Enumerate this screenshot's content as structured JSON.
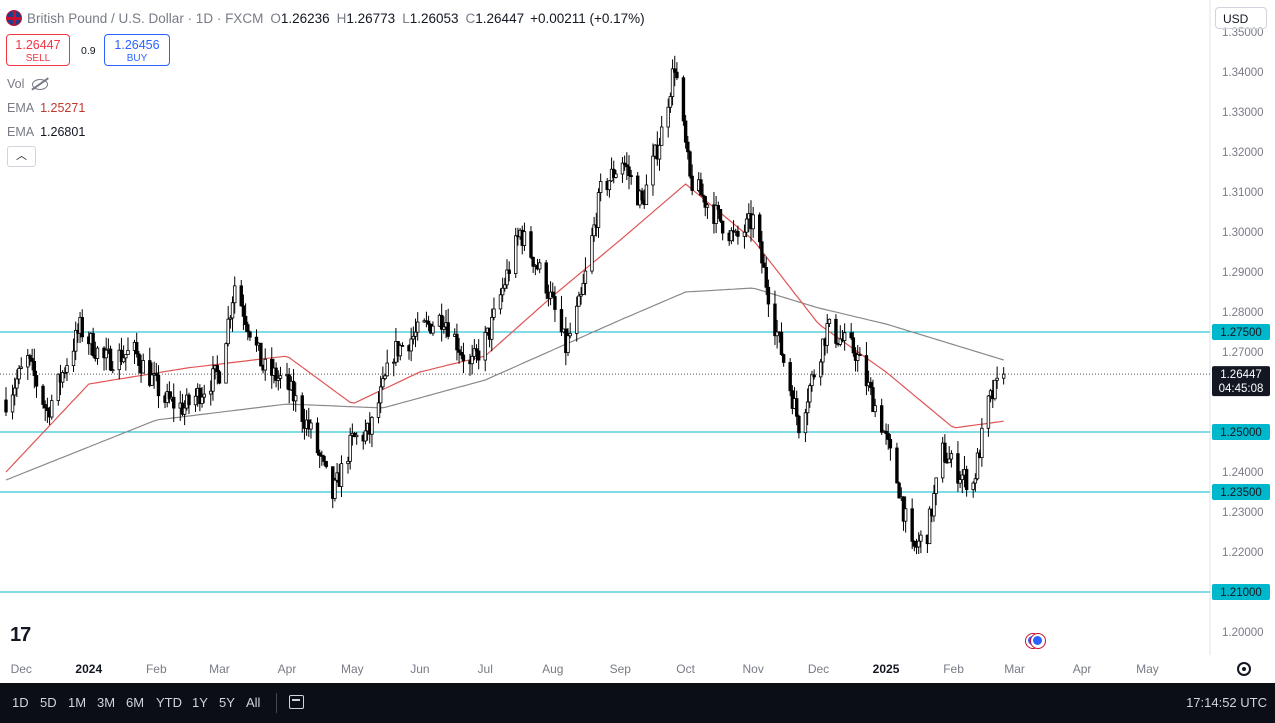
{
  "legend": {
    "symbol": "British Pound / U.S. Dollar · 1D · FXCM",
    "open_label": "O",
    "open": "1.26236",
    "high_label": "H",
    "high": "1.26773",
    "low_label": "L",
    "low": "1.26053",
    "close_label": "C",
    "close": "1.26447",
    "change": "+0.00211 (+0.17%)"
  },
  "trade": {
    "sell_price": "1.26447",
    "sell_label": "SELL",
    "spread": "0.9",
    "buy_price": "1.26456",
    "buy_label": "BUY"
  },
  "indicators": {
    "vol_label": "Vol",
    "ema1_label": "EMA",
    "ema1_value": "1.25271",
    "ema2_label": "EMA",
    "ema2_value": "1.26801"
  },
  "currency": "USD",
  "timeframes": [
    "1D",
    "5D",
    "1M",
    "3M",
    "6M",
    "YTD",
    "1Y",
    "5Y",
    "All"
  ],
  "clock": "17:14:52 UTC",
  "colors": {
    "candle": "#000000",
    "ema_fast": "#e05555",
    "ema_slow": "#8a8a8a",
    "support_line": "#00b8cc",
    "price_line": "#555555",
    "tag_bg": "#131722"
  },
  "icons": [
    "tradingview-logo",
    "flag-icon",
    "eye-off-icon",
    "chevron-up-icon",
    "calendar-icon",
    "settings-icon",
    "economic-event-icon"
  ],
  "chart_data": {
    "type": "candlestick",
    "ylim": [
      1.195,
      1.3525
    ],
    "y_ticks": [
      1.2,
      1.21,
      1.22,
      1.23,
      1.24,
      1.25,
      1.26,
      1.27,
      1.28,
      1.29,
      1.3,
      1.31,
      1.32,
      1.33,
      1.34,
      1.35
    ],
    "y_tick_labels": [
      "1.20000",
      "1.21000",
      "1.22000",
      "1.23000",
      "1.24000",
      "1.25000",
      "1.26000",
      "1.27000",
      "1.28000",
      "1.29000",
      "1.30000",
      "1.31000",
      "1.32000",
      "1.33000",
      "1.34000",
      "1.35000"
    ],
    "x_labels": [
      "Dec",
      "2024",
      "Feb",
      "Mar",
      "Apr",
      "May",
      "Jun",
      "Jul",
      "Aug",
      "Sep",
      "Oct",
      "Nov",
      "Dec",
      "2025",
      "Feb",
      "Mar",
      "Apr",
      "May"
    ],
    "x_label_bold": [
      false,
      true,
      false,
      false,
      false,
      false,
      false,
      false,
      false,
      false,
      false,
      false,
      false,
      true,
      false,
      false,
      false,
      false
    ],
    "x_start": "2023-11-24",
    "x_end": "2025-05-21",
    "last_bar_date": "2025-02-24",
    "horizontal_levels": [
      {
        "price": 1.275,
        "label": "1.27500"
      },
      {
        "price": 1.25,
        "label": "1.25000"
      },
      {
        "price": 1.235,
        "label": "1.23500"
      },
      {
        "price": 1.21,
        "label": "1.21000"
      }
    ],
    "current_price": {
      "price": 1.26447,
      "label": "1.26447",
      "countdown": "04:45:08"
    },
    "close_path": [
      [
        "2023-11-24",
        1.258
      ],
      [
        "2023-12-04",
        1.268
      ],
      [
        "2023-12-13",
        1.255
      ],
      [
        "2023-12-28",
        1.276
      ],
      [
        "2024-01-08",
        1.268
      ],
      [
        "2024-01-22",
        1.27
      ],
      [
        "2024-02-05",
        1.258
      ],
      [
        "2024-02-14",
        1.256
      ],
      [
        "2024-03-01",
        1.265
      ],
      [
        "2024-03-08",
        1.287
      ],
      [
        "2024-03-21",
        1.266
      ],
      [
        "2024-04-01",
        1.262
      ],
      [
        "2024-04-12",
        1.25
      ],
      [
        "2024-04-22",
        1.234
      ],
      [
        "2024-05-01",
        1.248
      ],
      [
        "2024-05-09",
        1.25
      ],
      [
        "2024-05-20",
        1.27
      ],
      [
        "2024-06-03",
        1.276
      ],
      [
        "2024-06-12",
        1.279
      ],
      [
        "2024-06-24",
        1.266
      ],
      [
        "2024-07-03",
        1.275
      ],
      [
        "2024-07-17",
        1.3
      ],
      [
        "2024-07-29",
        1.287
      ],
      [
        "2024-08-07",
        1.271
      ],
      [
        "2024-08-14",
        1.283
      ],
      [
        "2024-08-23",
        1.31
      ],
      [
        "2024-09-02",
        1.318
      ],
      [
        "2024-09-11",
        1.307
      ],
      [
        "2024-09-20",
        1.325
      ],
      [
        "2024-09-26",
        1.342
      ],
      [
        "2024-10-03",
        1.313
      ],
      [
        "2024-10-14",
        1.305
      ],
      [
        "2024-10-24",
        1.298
      ],
      [
        "2024-11-01",
        1.303
      ],
      [
        "2024-11-11",
        1.277
      ],
      [
        "2024-11-22",
        1.252
      ],
      [
        "2024-12-05",
        1.276
      ],
      [
        "2024-12-18",
        1.27
      ],
      [
        "2024-12-30",
        1.252
      ],
      [
        "2025-01-07",
        1.236
      ],
      [
        "2025-01-13",
        1.22
      ],
      [
        "2025-01-20",
        1.225
      ],
      [
        "2025-01-27",
        1.245
      ],
      [
        "2025-02-03",
        1.24
      ],
      [
        "2025-02-10",
        1.237
      ],
      [
        "2025-02-17",
        1.257
      ],
      [
        "2025-02-24",
        1.2645
      ]
    ],
    "ema_fast_path": [
      [
        "2023-11-24",
        1.24
      ],
      [
        "2024-01-01",
        1.262
      ],
      [
        "2024-02-15",
        1.266
      ],
      [
        "2024-04-01",
        1.269
      ],
      [
        "2024-05-01",
        1.257
      ],
      [
        "2024-06-01",
        1.265
      ],
      [
        "2024-07-01",
        1.269
      ],
      [
        "2024-08-01",
        1.284
      ],
      [
        "2024-09-01",
        1.298
      ],
      [
        "2024-10-01",
        1.312
      ],
      [
        "2024-11-01",
        1.298
      ],
      [
        "2024-12-01",
        1.277
      ],
      [
        "2025-01-01",
        1.265
      ],
      [
        "2025-02-01",
        1.251
      ],
      [
        "2025-02-24",
        1.2527
      ]
    ],
    "ema_slow_path": [
      [
        "2023-11-24",
        1.238
      ],
      [
        "2024-02-01",
        1.253
      ],
      [
        "2024-04-01",
        1.257
      ],
      [
        "2024-05-15",
        1.256
      ],
      [
        "2024-07-01",
        1.263
      ],
      [
        "2024-09-01",
        1.278
      ],
      [
        "2024-10-01",
        1.285
      ],
      [
        "2024-11-01",
        1.286
      ],
      [
        "2024-12-01",
        1.281
      ],
      [
        "2025-01-01",
        1.277
      ],
      [
        "2025-02-24",
        1.268
      ]
    ]
  }
}
